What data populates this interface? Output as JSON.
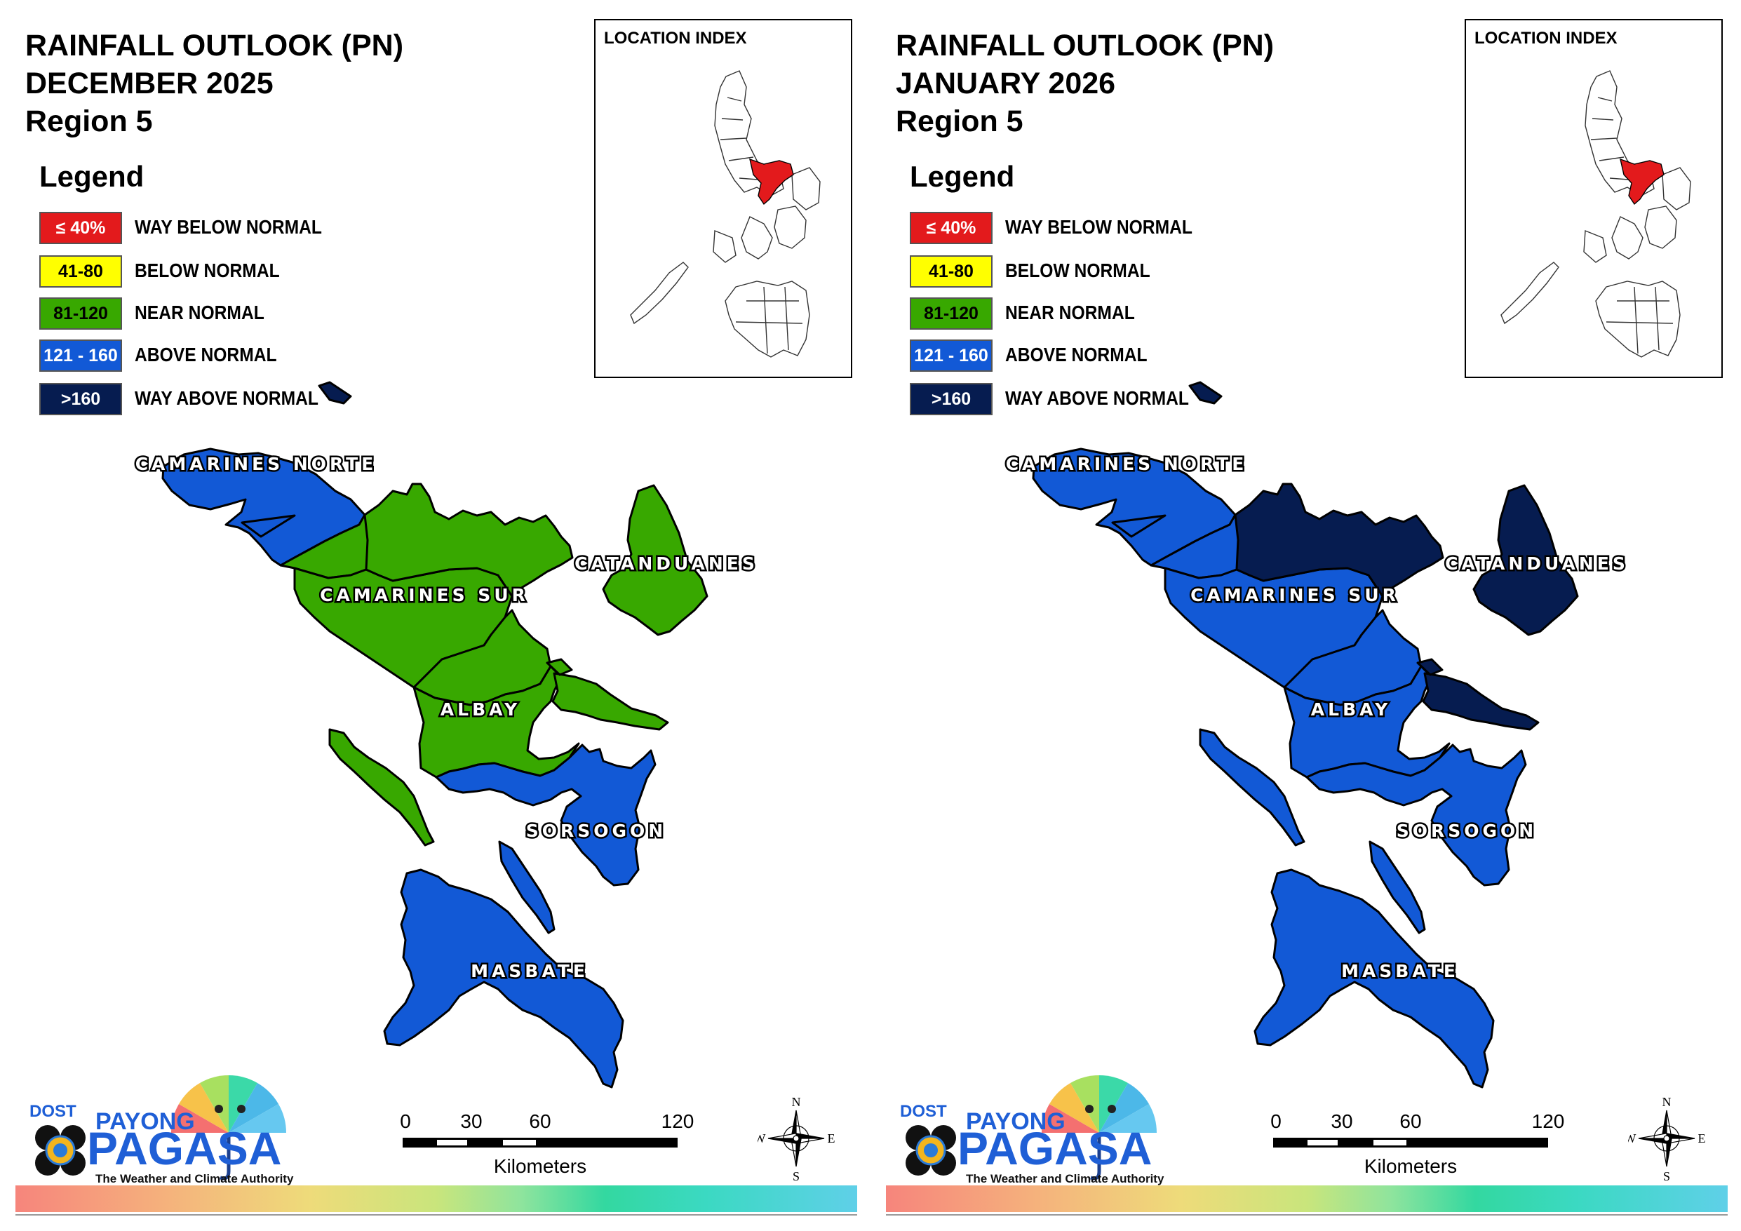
{
  "colors": {
    "way_below": "#e31a1c",
    "below": "#ffff00",
    "near": "#38a800",
    "above": "#1259d6",
    "way_above": "#061c50"
  },
  "legend": {
    "title": "Legend",
    "items": [
      {
        "range": "≤ 40%",
        "label": "WAY BELOW NORMAL",
        "color": "#e31a1c",
        "text_color": "#ffffff"
      },
      {
        "range": "41-80",
        "label": "BELOW NORMAL",
        "color": "#ffff00",
        "text_color": "#000000"
      },
      {
        "range": "81-120",
        "label": "NEAR NORMAL",
        "color": "#38a800",
        "text_color": "#000000"
      },
      {
        "range": "121 - 160",
        "label": "ABOVE NORMAL",
        "color": "#1259d6",
        "text_color": "#ffffff"
      },
      {
        "range": ">160",
        "label": "WAY ABOVE NORMAL",
        "color": "#061c50",
        "text_color": "#ffffff"
      }
    ]
  },
  "inset": {
    "title": "LOCATION INDEX"
  },
  "scale_bar": {
    "ticks": [
      "0",
      "30",
      "60",
      "120"
    ],
    "unit": "Kilometers"
  },
  "compass": {
    "n": "N",
    "s": "S",
    "e": "E",
    "w": "W"
  },
  "logo": {
    "dost": "DOST",
    "payong": "PAYONG",
    "pagasa": "PAGASA",
    "tagline": "The Weather and Climate Authority"
  },
  "provinces": [
    "CAMARINES NORTE",
    "CAMARINES SUR",
    "CATANDUANES",
    "ALBAY",
    "SORSOGON",
    "MASBATE"
  ],
  "maps": [
    {
      "title_line1": "RAINFALL OUTLOOK (PN)",
      "title_line2": "DECEMBER 2025",
      "title_line3": "Region 5",
      "provinces": {
        "CAMARINES NORTE": "above",
        "CAMARINES NORTE (east part)": "near",
        "CAMARINES SUR": "near",
        "CATANDUANES": "near",
        "ALBAY": "near",
        "SORSOGON": "above",
        "MASBATE": "above"
      }
    },
    {
      "title_line1": "RAINFALL OUTLOOK (PN)",
      "title_line2": "JANUARY 2026",
      "title_line3": "Region 5",
      "provinces": {
        "CAMARINES NORTE": "above",
        "CAMARINES SUR (west)": "above",
        "CAMARINES SUR (east)": "way_above",
        "CATANDUANES": "way_above",
        "ALBAY": "above",
        "ALBAY islands": "way_above",
        "SORSOGON": "above",
        "MASBATE": "above"
      }
    }
  ]
}
